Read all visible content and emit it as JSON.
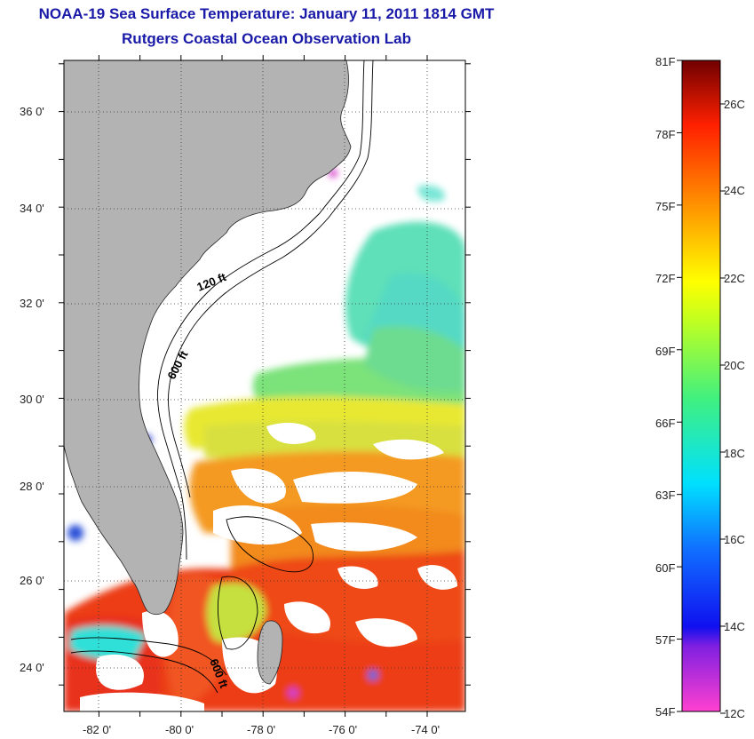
{
  "title_line1": "NOAA-19 Sea Surface Temperature:  January 11, 2011 1814 GMT",
  "title_line2": "Rutgers Coastal Ocean Observation Lab",
  "lat_labels": [
    "36 0'",
    "34 0'",
    "32 0'",
    "30 0'",
    "28 0'",
    "26 0'",
    "24 0'"
  ],
  "lon_labels": [
    "-82 0'",
    "-80 0'",
    "-78 0'",
    "-76 0'",
    "-74 0'"
  ],
  "contour_labels": {
    "c120": "120 ft",
    "c600a": "600 ft",
    "c600b": "600 ft"
  },
  "colorbar": {
    "f_labels": [
      "81F",
      "78F",
      "75F",
      "72F",
      "69F",
      "66F",
      "63F",
      "60F",
      "57F",
      "54F"
    ],
    "c_labels": [
      "26C",
      "24C",
      "22C",
      "20C",
      "18C",
      "16C",
      "14C",
      "12C"
    ]
  },
  "colors": {
    "title": "#1a1aa8",
    "land": "#b3b3b3",
    "ocean_nodata": "#ffffff"
  }
}
